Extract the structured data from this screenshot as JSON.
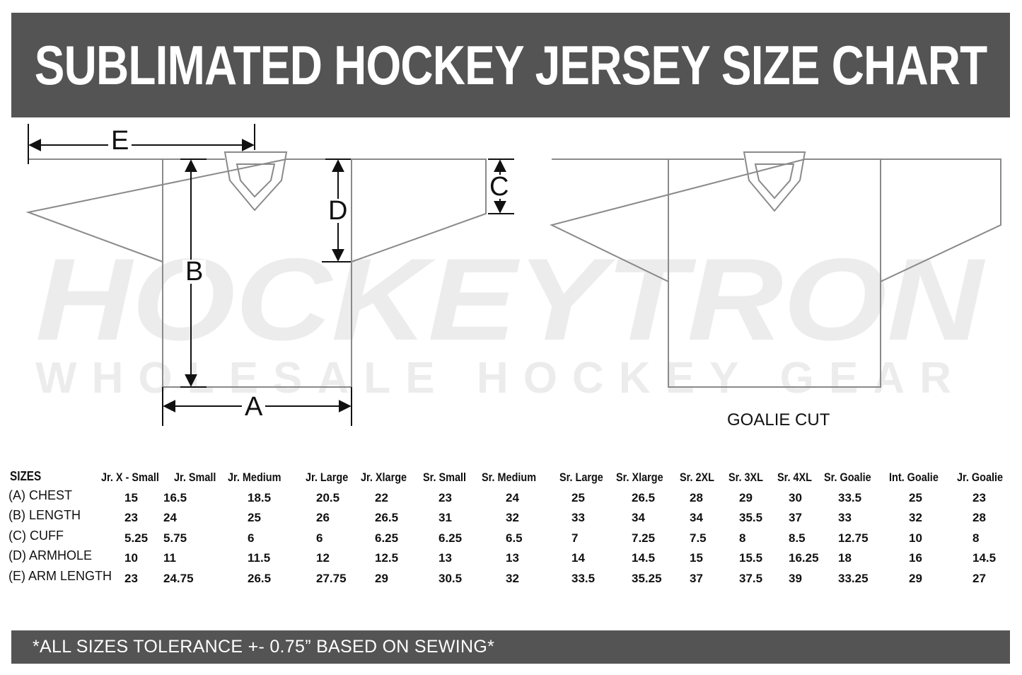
{
  "title": "SUBLIMATED HOCKEY JERSEY SIZE CHART",
  "watermark": {
    "brand": "HOCKEYTRON",
    "tagline": "WHOLESALE HOCKEY GEAR"
  },
  "diagram": {
    "labels": {
      "A": "A",
      "B": "B",
      "C": "C",
      "D": "D",
      "E": "E"
    },
    "goalie_label": "GOALIE CUT",
    "line_color": "#8a8a8a"
  },
  "table": {
    "corner": "SIZES",
    "columns": [
      "Jr. X - Small",
      "Jr. Small",
      "Jr. Medium",
      "Jr. Large",
      "Jr. Xlarge",
      "Sr. Small",
      "Sr. Medium",
      "Sr. Large",
      "Sr. Xlarge",
      "Sr. 2XL",
      "Sr. 3XL",
      "Sr. 4XL",
      "Sr. Goalie",
      "Int. Goalie",
      "Jr. Goalie"
    ],
    "rows": [
      {
        "label": "(A) CHEST",
        "values": [
          "15",
          "16.5",
          "18.5",
          "20.5",
          "22",
          "23",
          "24",
          "25",
          "26.5",
          "28",
          "29",
          "30",
          "33.5",
          "25",
          "23"
        ]
      },
      {
        "label": "(B) LENGTH",
        "values": [
          "23",
          "24",
          "25",
          "26",
          "26.5",
          "31",
          "32",
          "33",
          "34",
          "34",
          "35.5",
          "37",
          "33",
          "32",
          "28"
        ]
      },
      {
        "label": "(C) CUFF",
        "values": [
          "5.25",
          "5.75",
          "6",
          "6",
          "6.25",
          "6.25",
          "6.5",
          "7",
          "7.25",
          "7.5",
          "8",
          "8.5",
          "12.75",
          "10",
          "8"
        ]
      },
      {
        "label": "(D) ARMHOLE",
        "values": [
          "10",
          "11",
          "11.5",
          "12",
          "12.5",
          "13",
          "13",
          "14",
          "14.5",
          "15",
          "15.5",
          "16.25",
          "18",
          "16",
          "14.5"
        ]
      },
      {
        "label": "(E) ARM LENGTH",
        "values": [
          "23",
          "24.75",
          "26.5",
          "27.75",
          "29",
          "30.5",
          "32",
          "33.5",
          "35.25",
          "37",
          "37.5",
          "39",
          "33.25",
          "29",
          "27"
        ]
      }
    ]
  },
  "footer": "*ALL SIZES TOLERANCE +- 0.75” BASED ON SEWING*",
  "colors": {
    "bar": "#545454",
    "text_on_bar": "#ffffff"
  }
}
